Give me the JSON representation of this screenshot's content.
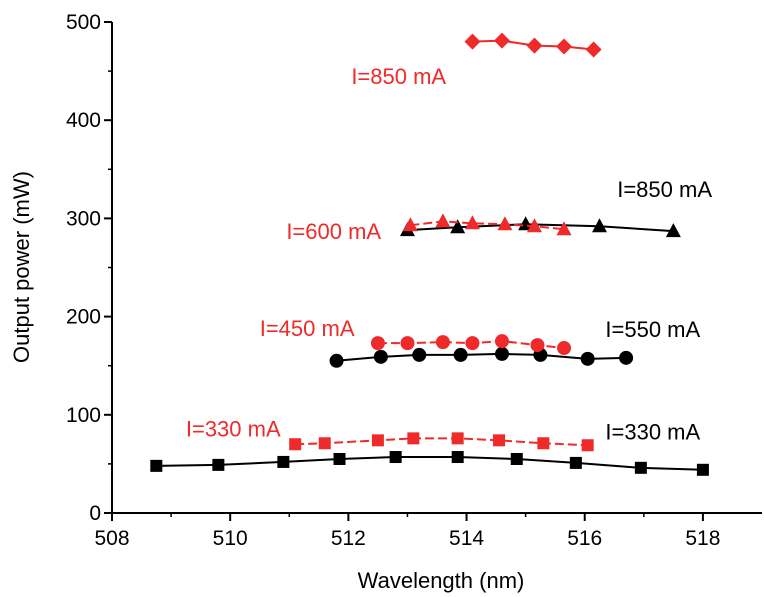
{
  "chart_data": {
    "type": "line",
    "xlabel": "Wavelength (nm)",
    "ylabel": "Output power (mW)",
    "xlim": [
      508,
      519
    ],
    "ylim": [
      0,
      500
    ],
    "xticks": [
      508,
      510,
      512,
      514,
      516,
      518
    ],
    "yticks": [
      0,
      100,
      200,
      300,
      400,
      500
    ],
    "colors": {
      "black": "#000000",
      "red": "#ee2a2a"
    },
    "series": [
      {
        "color": "#000000",
        "marker": "square",
        "x": [
          508.75,
          509.8,
          510.9,
          511.85,
          512.8,
          513.85,
          514.85,
          515.85,
          516.95,
          518.0
        ],
        "y": [
          48,
          49,
          52,
          55,
          57,
          57,
          55,
          51,
          46,
          44
        ]
      },
      {
        "color": "#ee2a2a",
        "marker": "square",
        "dashed": true,
        "x": [
          511.1,
          511.6,
          512.5,
          513.1,
          513.85,
          514.55,
          515.3,
          516.05
        ],
        "y": [
          70,
          71,
          74,
          76,
          76,
          74,
          71,
          69
        ]
      },
      {
        "color": "#000000",
        "marker": "circle",
        "x": [
          511.8,
          512.55,
          513.2,
          513.9,
          514.6,
          515.25,
          516.05,
          516.7
        ],
        "y": [
          155,
          159,
          161,
          161,
          162,
          161,
          157,
          158
        ]
      },
      {
        "color": "#ee2a2a",
        "marker": "circle",
        "dashed": true,
        "x": [
          512.5,
          513.0,
          513.6,
          514.1,
          514.6,
          515.2,
          515.65
        ],
        "y": [
          173,
          173,
          174,
          173,
          175,
          171,
          168
        ]
      },
      {
        "color": "#000000",
        "marker": "triangle",
        "x": [
          513.0,
          513.85,
          515.0,
          516.25,
          517.5
        ],
        "y": [
          288,
          291,
          294,
          292,
          287
        ]
      },
      {
        "color": "#ee2a2a",
        "marker": "triangle",
        "dashed": true,
        "x": [
          513.05,
          513.6,
          514.1,
          514.65,
          515.15,
          515.65
        ],
        "y": [
          293,
          297,
          295,
          294,
          292,
          289
        ]
      },
      {
        "color": "#ee2a2a",
        "marker": "diamond",
        "x": [
          514.1,
          514.6,
          515.15,
          515.65,
          516.15
        ],
        "y": [
          480,
          481,
          476,
          475,
          472
        ]
      }
    ],
    "annotations": [
      {
        "text": "I=850 mA",
        "color": "#ee2a2a",
        "x": 512.05,
        "y": 437
      },
      {
        "text": "I=850 mA",
        "color": "#000000",
        "x": 516.55,
        "y": 322
      },
      {
        "text": "I=600 mA",
        "color": "#ee2a2a",
        "x": 510.95,
        "y": 279
      },
      {
        "text": "I=450 mA",
        "color": "#ee2a2a",
        "x": 510.5,
        "y": 180
      },
      {
        "text": "I=550 mA",
        "color": "#000000",
        "x": 516.35,
        "y": 179
      },
      {
        "text": "I=330 mA",
        "color": "#ee2a2a",
        "x": 509.25,
        "y": 78
      },
      {
        "text": "I=330 mA",
        "color": "#000000",
        "x": 516.35,
        "y": 75
      }
    ]
  }
}
